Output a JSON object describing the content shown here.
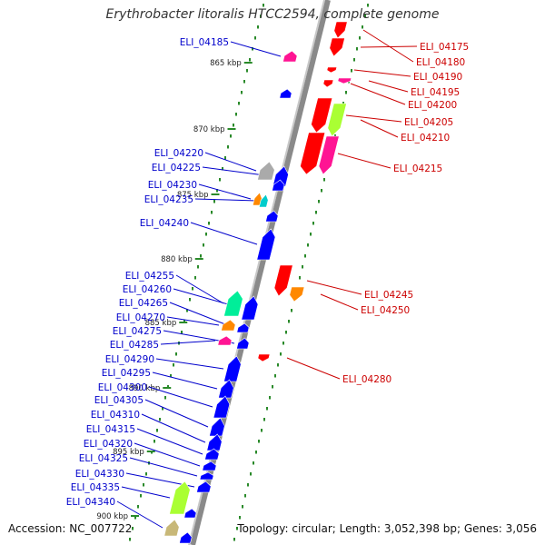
{
  "title": "Erythrobacter litoralis HTCC2594, complete genome",
  "accession": "Accession: NC_007722",
  "topology": "Topology: circular; Length: 3,052,398 bp; Genes: 3,056",
  "colors": {
    "backbone": "#8a8a8a",
    "dots": "#2a8a2a",
    "label_left": "#0000cc",
    "label_right": "#cc0000"
  },
  "ticks": [
    {
      "label": "865 kbp"
    },
    {
      "label": "870 kbp"
    },
    {
      "label": "875 kbp"
    },
    {
      "label": "880 kbp"
    },
    {
      "label": "885 kbp"
    },
    {
      "label": "890 kbp"
    },
    {
      "label": "895 kbp"
    },
    {
      "label": "900 kbp"
    }
  ],
  "genes_right": [
    {
      "label": "ELI_04175",
      "color": "#ff0000"
    },
    {
      "label": "ELI_04180",
      "color": "#ff0000"
    },
    {
      "label": "ELI_04190",
      "color": "#ff0000"
    },
    {
      "label": "ELI_04195",
      "color": "#ff1493"
    },
    {
      "label": "ELI_04200",
      "color": "#ff0000"
    },
    {
      "label": "ELI_04205",
      "color": "#ff0000"
    },
    {
      "label": "ELI_04210",
      "color": "#aaff33"
    },
    {
      "label": "ELI_04215",
      "color": "#ff0000"
    },
    {
      "label": "ELI_04245",
      "color": "#ff0000"
    },
    {
      "label": "ELI_04250",
      "color": "#ff8800"
    },
    {
      "label": "ELI_04280",
      "color": "#ff0000"
    }
  ],
  "genes_left": [
    {
      "label": "ELI_04185",
      "color": "#ff1493"
    },
    {
      "label": "ELI_04220",
      "color": "#aaaaaa"
    },
    {
      "label": "ELI_04225",
      "color": "#0000ff"
    },
    {
      "label": "ELI_04230",
      "color": "#ff8800"
    },
    {
      "label": "ELI_04235",
      "color": "#00cccc"
    },
    {
      "label": "ELI_04240",
      "color": "#0000ff"
    },
    {
      "label": "ELI_04255",
      "color": "#00ee99"
    },
    {
      "label": "ELI_04260",
      "color": "#0000ff"
    },
    {
      "label": "ELI_04265",
      "color": "#0000ff"
    },
    {
      "label": "ELI_04270",
      "color": "#ff8800"
    },
    {
      "label": "ELI_04275",
      "color": "#0000ff"
    },
    {
      "label": "ELI_04285",
      "color": "#ff1493"
    },
    {
      "label": "ELI_04290",
      "color": "#0000ff"
    },
    {
      "label": "ELI_04295",
      "color": "#0000ff"
    },
    {
      "label": "ELI_04300",
      "color": "#0000ff"
    },
    {
      "label": "ELI_04305",
      "color": "#0000ff"
    },
    {
      "label": "ELI_04310",
      "color": "#0000ff"
    },
    {
      "label": "ELI_04315",
      "color": "#0000ff"
    },
    {
      "label": "ELI_04320",
      "color": "#0000ff"
    },
    {
      "label": "ELI_04325",
      "color": "#0000ff"
    },
    {
      "label": "ELI_04330",
      "color": "#0000ff"
    },
    {
      "label": "ELI_04335",
      "color": "#aaff33"
    },
    {
      "label": "ELI_04340",
      "color": "#c8b878"
    }
  ]
}
